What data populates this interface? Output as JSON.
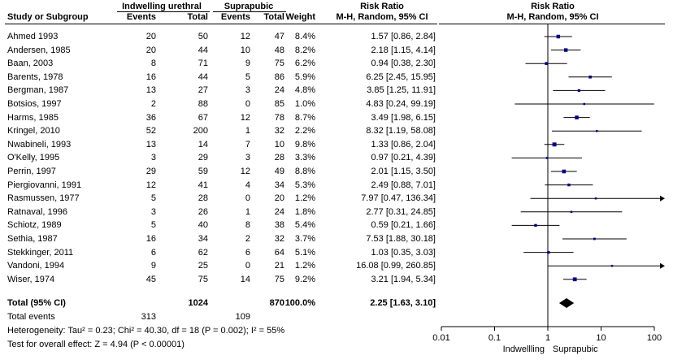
{
  "header": {
    "group1": "Indwelling urethral",
    "group2": "Suprapubic",
    "rr_title": "Risk Ratio",
    "rr_title_plot": "Risk Ratio",
    "method": "M-H, Random, 95% CI",
    "method_plot": "M-H, Random, 95% CI",
    "col_study": "Study or Subgroup",
    "col_events1": "Events",
    "col_total1": "Total",
    "col_events2": "Events",
    "col_total2": "Total",
    "col_weight": "Weight"
  },
  "chart_data": {
    "type": "forest",
    "xscale": "log",
    "xlim": [
      0.01,
      100
    ],
    "xticks": [
      "0.01",
      "0.1",
      "1",
      "10",
      "100"
    ],
    "xtick_values": [
      0.01,
      0.1,
      1,
      10,
      100
    ],
    "favours_left": "Indwellling",
    "favours_right": "Suprapubic",
    "studies": [
      {
        "name": "Ahmed 1993",
        "e1": "20",
        "t1": "50",
        "e2": "12",
        "t2": "47",
        "weight": "8.4%",
        "ci_text": "1.57 [0.86, 2.84]",
        "rr": 1.57,
        "lo": 0.86,
        "hi": 2.84
      },
      {
        "name": "Andersen, 1985",
        "e1": "20",
        "t1": "44",
        "e2": "10",
        "t2": "48",
        "weight": "8.2%",
        "ci_text": "2.18 [1.15, 4.14]",
        "rr": 2.18,
        "lo": 1.15,
        "hi": 4.14
      },
      {
        "name": "Baan, 2003",
        "e1": "8",
        "t1": "71",
        "e2": "9",
        "t2": "75",
        "weight": "6.2%",
        "ci_text": "0.94 [0.38, 2.30]",
        "rr": 0.94,
        "lo": 0.38,
        "hi": 2.3
      },
      {
        "name": "Barents, 1978",
        "e1": "16",
        "t1": "44",
        "e2": "5",
        "t2": "86",
        "weight": "5.9%",
        "ci_text": "6.25 [2.45, 15.95]",
        "rr": 6.25,
        "lo": 2.45,
        "hi": 15.95
      },
      {
        "name": "Bergman, 1987",
        "e1": "13",
        "t1": "27",
        "e2": "3",
        "t2": "24",
        "weight": "4.8%",
        "ci_text": "3.85 [1.25, 11.91]",
        "rr": 3.85,
        "lo": 1.25,
        "hi": 11.91
      },
      {
        "name": "Botsios, 1997",
        "e1": "2",
        "t1": "88",
        "e2": "0",
        "t2": "85",
        "weight": "1.0%",
        "ci_text": "4.83 [0.24, 99.19]",
        "rr": 4.83,
        "lo": 0.24,
        "hi": 99.19
      },
      {
        "name": "Harms, 1985",
        "e1": "36",
        "t1": "67",
        "e2": "12",
        "t2": "78",
        "weight": "8.7%",
        "ci_text": "3.49 [1.98, 6.15]",
        "rr": 3.49,
        "lo": 1.98,
        "hi": 6.15
      },
      {
        "name": "Kringel, 2010",
        "e1": "52",
        "t1": "200",
        "e2": "1",
        "t2": "32",
        "weight": "2.2%",
        "ci_text": "8.32 [1.19, 58.08]",
        "rr": 8.32,
        "lo": 1.19,
        "hi": 58.08
      },
      {
        "name": "Nwabineli, 1993",
        "e1": "13",
        "t1": "14",
        "e2": "7",
        "t2": "10",
        "weight": "9.8%",
        "ci_text": "1.33 [0.86, 2.04]",
        "rr": 1.33,
        "lo": 0.86,
        "hi": 2.04
      },
      {
        "name": "O'Kelly, 1995",
        "e1": "3",
        "t1": "29",
        "e2": "3",
        "t2": "28",
        "weight": "3.3%",
        "ci_text": "0.97 [0.21, 4.39]",
        "rr": 0.97,
        "lo": 0.21,
        "hi": 4.39
      },
      {
        "name": "Perrin, 1997",
        "e1": "29",
        "t1": "59",
        "e2": "12",
        "t2": "49",
        "weight": "8.8%",
        "ci_text": "2.01 [1.15, 3.50]",
        "rr": 2.01,
        "lo": 1.15,
        "hi": 3.5
      },
      {
        "name": "Piergiovanni, 1991",
        "e1": "12",
        "t1": "41",
        "e2": "4",
        "t2": "34",
        "weight": "5.3%",
        "ci_text": "2.49 [0.88, 7.01]",
        "rr": 2.49,
        "lo": 0.88,
        "hi": 7.01
      },
      {
        "name": "Rasmussen, 1977",
        "e1": "5",
        "t1": "28",
        "e2": "0",
        "t2": "20",
        "weight": "1.2%",
        "ci_text": "7.97 [0.47, 136.34]",
        "rr": 7.97,
        "lo": 0.47,
        "hi": 136.34
      },
      {
        "name": "Ratnaval, 1996",
        "e1": "3",
        "t1": "26",
        "e2": "1",
        "t2": "24",
        "weight": "1.8%",
        "ci_text": "2.77 [0.31, 24.85]",
        "rr": 2.77,
        "lo": 0.31,
        "hi": 24.85
      },
      {
        "name": "Schiotz, 1989",
        "e1": "5",
        "t1": "40",
        "e2": "8",
        "t2": "38",
        "weight": "5.4%",
        "ci_text": "0.59 [0.21, 1.66]",
        "rr": 0.59,
        "lo": 0.21,
        "hi": 1.66
      },
      {
        "name": "Sethia, 1987",
        "e1": "16",
        "t1": "34",
        "e2": "2",
        "t2": "32",
        "weight": "3.7%",
        "ci_text": "7.53 [1.88, 30.18]",
        "rr": 7.53,
        "lo": 1.88,
        "hi": 30.18
      },
      {
        "name": "Stekkinger, 2011",
        "e1": "6",
        "t1": "62",
        "e2": "6",
        "t2": "64",
        "weight": "5.1%",
        "ci_text": "1.03 [0.35, 3.03]",
        "rr": 1.03,
        "lo": 0.35,
        "hi": 3.03
      },
      {
        "name": "Vandoni, 1994",
        "e1": "9",
        "t1": "25",
        "e2": "0",
        "t2": "21",
        "weight": "1.2%",
        "ci_text": "16.08 [0.99, 260.85]",
        "rr": 16.08,
        "lo": 0.99,
        "hi": 260.85
      },
      {
        "name": "Wiser, 1974",
        "e1": "45",
        "t1": "75",
        "e2": "14",
        "t2": "75",
        "weight": "9.2%",
        "ci_text": "3.21 [1.94, 5.34]",
        "rr": 3.21,
        "lo": 1.94,
        "hi": 5.34
      }
    ],
    "total": {
      "name": "Total (95% CI)",
      "t1": "1024",
      "t2": "870",
      "weight": "100.0%",
      "ci_text": "2.25 [1.63, 3.10]",
      "rr": 2.25,
      "lo": 1.63,
      "hi": 3.1
    },
    "total_events": {
      "label": "Total events",
      "e1": "313",
      "e2": "109"
    },
    "heterogeneity": "Heterogeneity: Tau² = 0.23; Chi² = 40.30, df = 18 (P = 0.002); I² = 55%",
    "overall_effect": "Test for overall effect: Z = 4.94 (P < 0.00001)",
    "colors": {
      "marker": "#00008b",
      "line": "#000000"
    }
  }
}
